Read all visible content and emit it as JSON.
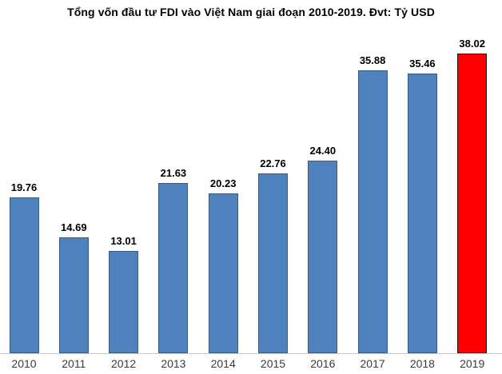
{
  "chart_data": {
    "type": "bar",
    "title": "Tổng vốn đầu tư FDI vào Việt Nam giai đoạn 2010-2019. Đvt: Tỷ USD",
    "unit": "Tỷ USD",
    "categories": [
      "2010",
      "2011",
      "2012",
      "2013",
      "2014",
      "2015",
      "2016",
      "2017",
      "2018",
      "2019"
    ],
    "values": [
      19.76,
      14.69,
      13.01,
      21.63,
      20.23,
      22.76,
      24.4,
      35.88,
      35.46,
      38.02
    ],
    "value_labels": [
      "19.76",
      "14.69",
      "13.01",
      "21.63",
      "20.23",
      "22.76",
      "24.40",
      "35.88",
      "35.46",
      "38.02"
    ],
    "xlabel": "",
    "ylabel": "",
    "ylim": [
      0,
      40
    ],
    "grid": false,
    "legend": false,
    "bar_color": "#4F81BD",
    "bar_border_color": "#385D8A",
    "highlight_index": 9,
    "highlight_color": "#FF0000",
    "highlight_border_color": "#1A1A1A",
    "axis_line_color": "#C9C9C9",
    "label_color": "#000000",
    "tick_color": "#3A3A3A"
  }
}
